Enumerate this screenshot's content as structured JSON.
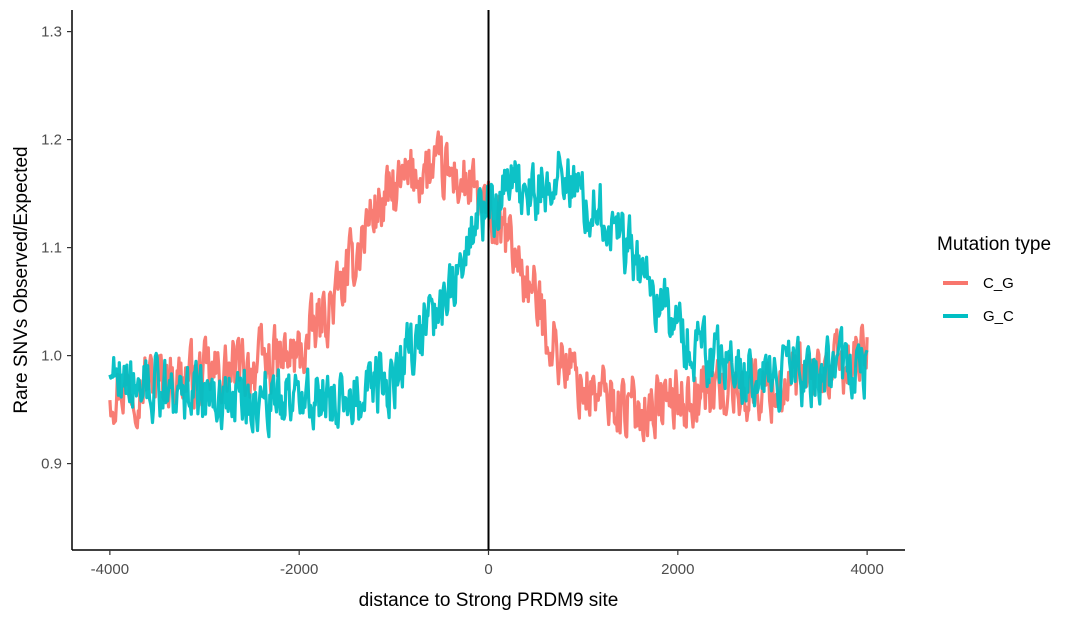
{
  "chart_data": {
    "type": "line",
    "xlabel": "distance to Strong PRDM9 site",
    "ylabel": "Rare SNVs Observed/Expected",
    "xlim": [
      -4400,
      4400
    ],
    "ylim": [
      0.82,
      1.32
    ],
    "x_ticks": [
      -4000,
      -2000,
      0,
      2000,
      4000
    ],
    "x_tick_labels": [
      "-4000",
      "-2000",
      "0",
      "2000",
      "4000"
    ],
    "y_ticks": [
      0.9,
      1.0,
      1.1,
      1.2,
      1.3
    ],
    "y_tick_labels": [
      "0.9",
      "1.0",
      "1.1",
      "1.2",
      "1.3"
    ],
    "grid": false,
    "reference_line_x": 0,
    "legend": {
      "title": "Mutation type",
      "position": "right",
      "entries": [
        "C_G",
        "G_C"
      ]
    },
    "series": [
      {
        "name": "C_G",
        "color": "#F8766D",
        "x": [
          -4000,
          -3500,
          -3000,
          -2500,
          -2000,
          -1500,
          -1250,
          -1000,
          -750,
          -500,
          -250,
          0,
          250,
          500,
          750,
          1000,
          1500,
          2000,
          2500,
          3000,
          3500,
          4000
        ],
        "values": [
          0.97,
          0.98,
          0.98,
          0.99,
          1.0,
          1.07,
          1.13,
          1.15,
          1.17,
          1.17,
          1.16,
          1.13,
          1.1,
          1.05,
          1.0,
          0.97,
          0.95,
          0.96,
          0.97,
          0.97,
          0.98,
          1.0
        ]
      },
      {
        "name": "G_C",
        "color": "#00BFC4",
        "x": [
          -4000,
          -3500,
          -3000,
          -2500,
          -2000,
          -1500,
          -1000,
          -500,
          -250,
          0,
          250,
          500,
          750,
          1000,
          1250,
          1500,
          2000,
          2500,
          3000,
          3500,
          4000
        ],
        "values": [
          0.99,
          0.97,
          0.96,
          0.96,
          0.96,
          0.96,
          0.98,
          1.05,
          1.1,
          1.14,
          1.15,
          1.15,
          1.17,
          1.15,
          1.13,
          1.1,
          1.02,
          0.99,
          0.98,
          0.98,
          0.99
        ]
      }
    ]
  }
}
